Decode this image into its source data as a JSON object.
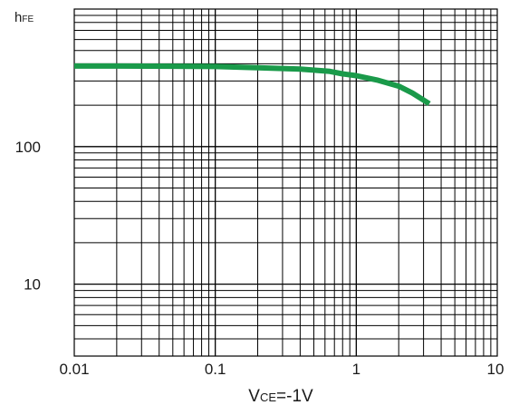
{
  "chart_data": {
    "type": "line",
    "x_scale": "log",
    "y_scale": "log",
    "xlim": [
      0.01,
      10
    ],
    "ylim": [
      3,
      1000
    ],
    "x_ticks": [
      {
        "value": 0.01,
        "label": "0.01"
      },
      {
        "value": 0.1,
        "label": "0.1"
      },
      {
        "value": 1,
        "label": "1"
      },
      {
        "value": 10,
        "label": "10"
      }
    ],
    "y_ticks": [
      {
        "value": 10,
        "label": "10"
      },
      {
        "value": 100,
        "label": "100"
      }
    ],
    "ylabel": {
      "main": "h",
      "sub": "FE"
    },
    "xlabel": {
      "main": "V",
      "sub": "CE",
      "rest": "=-1V"
    },
    "grid": true,
    "line_color": "#1a9a4a",
    "series": [
      {
        "x": [
          0.01,
          0.02,
          0.05,
          0.1,
          0.2,
          0.4,
          0.65,
          0.8,
          1.0,
          1.4,
          2.0,
          2.5,
          3.3
        ],
        "y": [
          385,
          385,
          384,
          382,
          375,
          366,
          352,
          338,
          328,
          305,
          275,
          245,
          205
        ]
      }
    ]
  }
}
